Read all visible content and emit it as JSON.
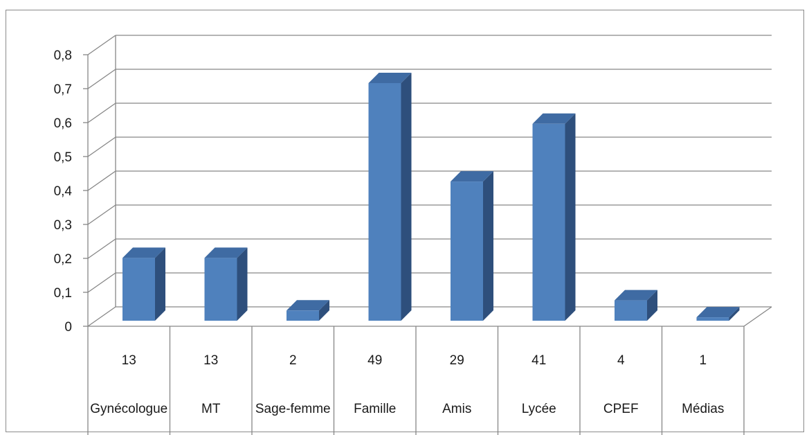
{
  "chart_data": {
    "type": "bar",
    "style": "3d-column",
    "categories": [
      "Gynécologue",
      "MT",
      "Sage-femme",
      "Famille",
      "Amis",
      "Lycée",
      "CPEF",
      "Médias"
    ],
    "counts": [
      "13",
      "13",
      "2",
      "49",
      "29",
      "41",
      "4",
      "1"
    ],
    "values": [
      0.185,
      0.185,
      0.03,
      0.7,
      0.41,
      0.58,
      0.06,
      0.01
    ],
    "ylim": [
      0,
      0.8
    ],
    "yticks": [
      "0",
      "0,1",
      "0,2",
      "0,3",
      "0,4",
      "0,5",
      "0,6",
      "0,7",
      "0,8"
    ],
    "grid": true,
    "legend": "none",
    "colors": {
      "bar_front": "#4F81BD",
      "bar_side": "#2E4F7C",
      "bar_top": "#3F6BA3",
      "grid": "#868686",
      "axis": "#868686"
    }
  }
}
